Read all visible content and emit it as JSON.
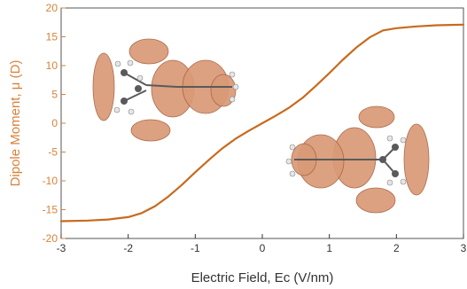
{
  "colors": {
    "curve": "#c86a1e",
    "y_axis": "#d9813a",
    "x_axis": "#333333",
    "frame": "#555555",
    "lobe_fill": "#d99a77",
    "lobe_edge": "#a7603e",
    "carbon": "#5a5a5a",
    "hydrogen": "#e6e6e6"
  },
  "chart_data": {
    "type": "line",
    "xlabel": "Electric Field, Ec (V/nm)",
    "ylabel": "Dipole Moment, μ (D)",
    "xlim": [
      -3,
      3
    ],
    "ylim": [
      -20,
      20
    ],
    "xticks": [
      "-3",
      "-2",
      "-1",
      "0",
      "1",
      "2",
      "3"
    ],
    "yticks": [
      "20",
      "15",
      "10",
      "5",
      "0",
      "-5",
      "-10",
      "-15",
      "-20"
    ],
    "grid": false,
    "series": [
      {
        "x": [
          -3.0,
          -2.6,
          -2.3,
          -2.0,
          -1.8,
          -1.6,
          -1.4,
          -1.2,
          -1.0,
          -0.8,
          -0.6,
          -0.4,
          -0.2,
          0.0,
          0.2,
          0.4,
          0.6,
          0.8,
          1.0,
          1.2,
          1.4,
          1.6,
          1.8,
          2.0,
          2.3,
          2.6,
          3.0
        ],
        "y": [
          -17.0,
          -16.9,
          -16.7,
          -16.3,
          -15.6,
          -14.4,
          -12.7,
          -10.7,
          -8.5,
          -6.4,
          -4.4,
          -2.7,
          -1.3,
          0.0,
          1.3,
          2.7,
          4.4,
          6.5,
          8.7,
          11.0,
          13.1,
          14.9,
          16.1,
          16.5,
          16.8,
          17.0,
          17.1
        ]
      }
    ],
    "insets": [
      "molecule-orbital-upper-left",
      "molecule-orbital-lower-right"
    ]
  }
}
